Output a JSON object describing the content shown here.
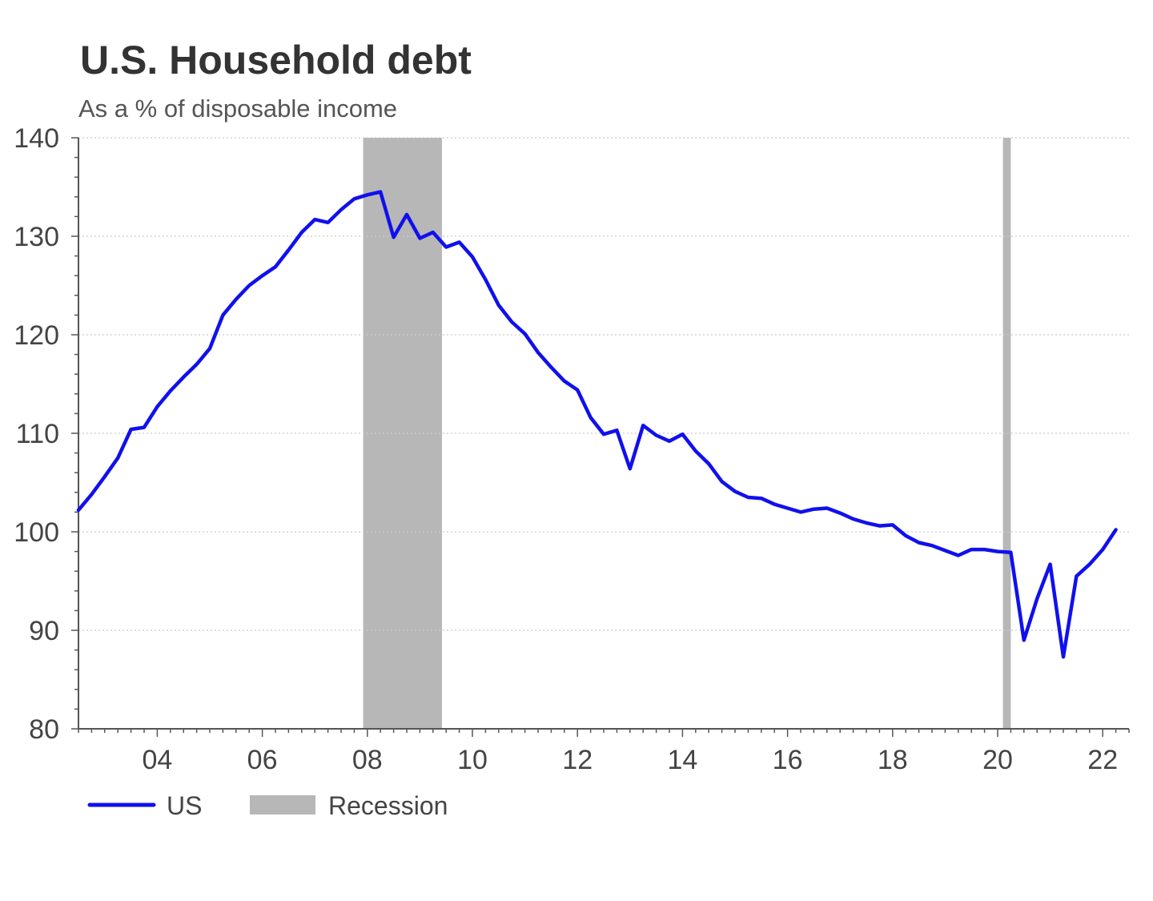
{
  "chart_data": {
    "type": "line",
    "title": "U.S. Household debt",
    "subtitle": "As a % of disposable income",
    "xlabel": "",
    "ylabel": "",
    "xlim": [
      2002.5,
      2022.5
    ],
    "ylim": [
      80,
      140
    ],
    "y_ticks": [
      80,
      90,
      100,
      110,
      120,
      130,
      140
    ],
    "x_ticks": [
      {
        "x": 2004,
        "label": "04"
      },
      {
        "x": 2006,
        "label": "06"
      },
      {
        "x": 2008,
        "label": "08"
      },
      {
        "x": 2010,
        "label": "10"
      },
      {
        "x": 2012,
        "label": "12"
      },
      {
        "x": 2014,
        "label": "14"
      },
      {
        "x": 2016,
        "label": "16"
      },
      {
        "x": 2018,
        "label": "18"
      },
      {
        "x": 2020,
        "label": "20"
      },
      {
        "x": 2022,
        "label": "22"
      }
    ],
    "grid": "horizontal-dotted",
    "legend_position": "bottom-left",
    "colors": {
      "series": "#1010ee",
      "recession": "#b7b7b7",
      "grid": "#cccccc",
      "axis": "#555555"
    },
    "recessions": [
      {
        "start": 2007.92,
        "end": 2009.42
      },
      {
        "start": 2020.1,
        "end": 2020.25
      }
    ],
    "series": [
      {
        "name": "US",
        "points": [
          [
            2002.5,
            102.2
          ],
          [
            2002.75,
            103.8
          ],
          [
            2003.0,
            105.6
          ],
          [
            2003.25,
            107.5
          ],
          [
            2003.5,
            110.4
          ],
          [
            2003.75,
            110.6
          ],
          [
            2004.0,
            112.7
          ],
          [
            2004.25,
            114.3
          ],
          [
            2004.5,
            115.7
          ],
          [
            2004.75,
            117.0
          ],
          [
            2005.0,
            118.6
          ],
          [
            2005.25,
            122.0
          ],
          [
            2005.5,
            123.6
          ],
          [
            2005.75,
            125.0
          ],
          [
            2006.0,
            126.0
          ],
          [
            2006.25,
            126.9
          ],
          [
            2006.5,
            128.6
          ],
          [
            2006.75,
            130.4
          ],
          [
            2007.0,
            131.7
          ],
          [
            2007.25,
            131.4
          ],
          [
            2007.5,
            132.7
          ],
          [
            2007.75,
            133.8
          ],
          [
            2008.0,
            134.2
          ],
          [
            2008.25,
            134.5
          ],
          [
            2008.5,
            129.9
          ],
          [
            2008.75,
            132.2
          ],
          [
            2009.0,
            129.8
          ],
          [
            2009.25,
            130.4
          ],
          [
            2009.5,
            128.9
          ],
          [
            2009.75,
            129.4
          ],
          [
            2010.0,
            127.9
          ],
          [
            2010.25,
            125.6
          ],
          [
            2010.5,
            123.0
          ],
          [
            2010.75,
            121.3
          ],
          [
            2011.0,
            120.1
          ],
          [
            2011.25,
            118.2
          ],
          [
            2011.5,
            116.7
          ],
          [
            2011.75,
            115.3
          ],
          [
            2012.0,
            114.4
          ],
          [
            2012.25,
            111.6
          ],
          [
            2012.5,
            109.9
          ],
          [
            2012.75,
            110.3
          ],
          [
            2013.0,
            106.4
          ],
          [
            2013.25,
            110.8
          ],
          [
            2013.5,
            109.8
          ],
          [
            2013.75,
            109.2
          ],
          [
            2014.0,
            109.9
          ],
          [
            2014.25,
            108.2
          ],
          [
            2014.5,
            106.9
          ],
          [
            2014.75,
            105.1
          ],
          [
            2015.0,
            104.1
          ],
          [
            2015.25,
            103.5
          ],
          [
            2015.5,
            103.4
          ],
          [
            2015.75,
            102.8
          ],
          [
            2016.0,
            102.4
          ],
          [
            2016.25,
            102.0
          ],
          [
            2016.5,
            102.3
          ],
          [
            2016.75,
            102.4
          ],
          [
            2017.0,
            101.9
          ],
          [
            2017.25,
            101.3
          ],
          [
            2017.5,
            100.9
          ],
          [
            2017.75,
            100.6
          ],
          [
            2018.0,
            100.7
          ],
          [
            2018.25,
            99.6
          ],
          [
            2018.5,
            98.9
          ],
          [
            2018.75,
            98.6
          ],
          [
            2019.0,
            98.1
          ],
          [
            2019.25,
            97.6
          ],
          [
            2019.5,
            98.2
          ],
          [
            2019.75,
            98.2
          ],
          [
            2020.0,
            98.0
          ],
          [
            2020.25,
            97.9
          ],
          [
            2020.5,
            89.0
          ],
          [
            2020.75,
            93.2
          ],
          [
            2021.0,
            96.7
          ],
          [
            2021.25,
            87.3
          ],
          [
            2021.5,
            95.5
          ],
          [
            2021.75,
            96.7
          ],
          [
            2022.0,
            98.2
          ],
          [
            2022.25,
            100.2
          ]
        ]
      },
      {
        "name": "Recession"
      }
    ]
  }
}
